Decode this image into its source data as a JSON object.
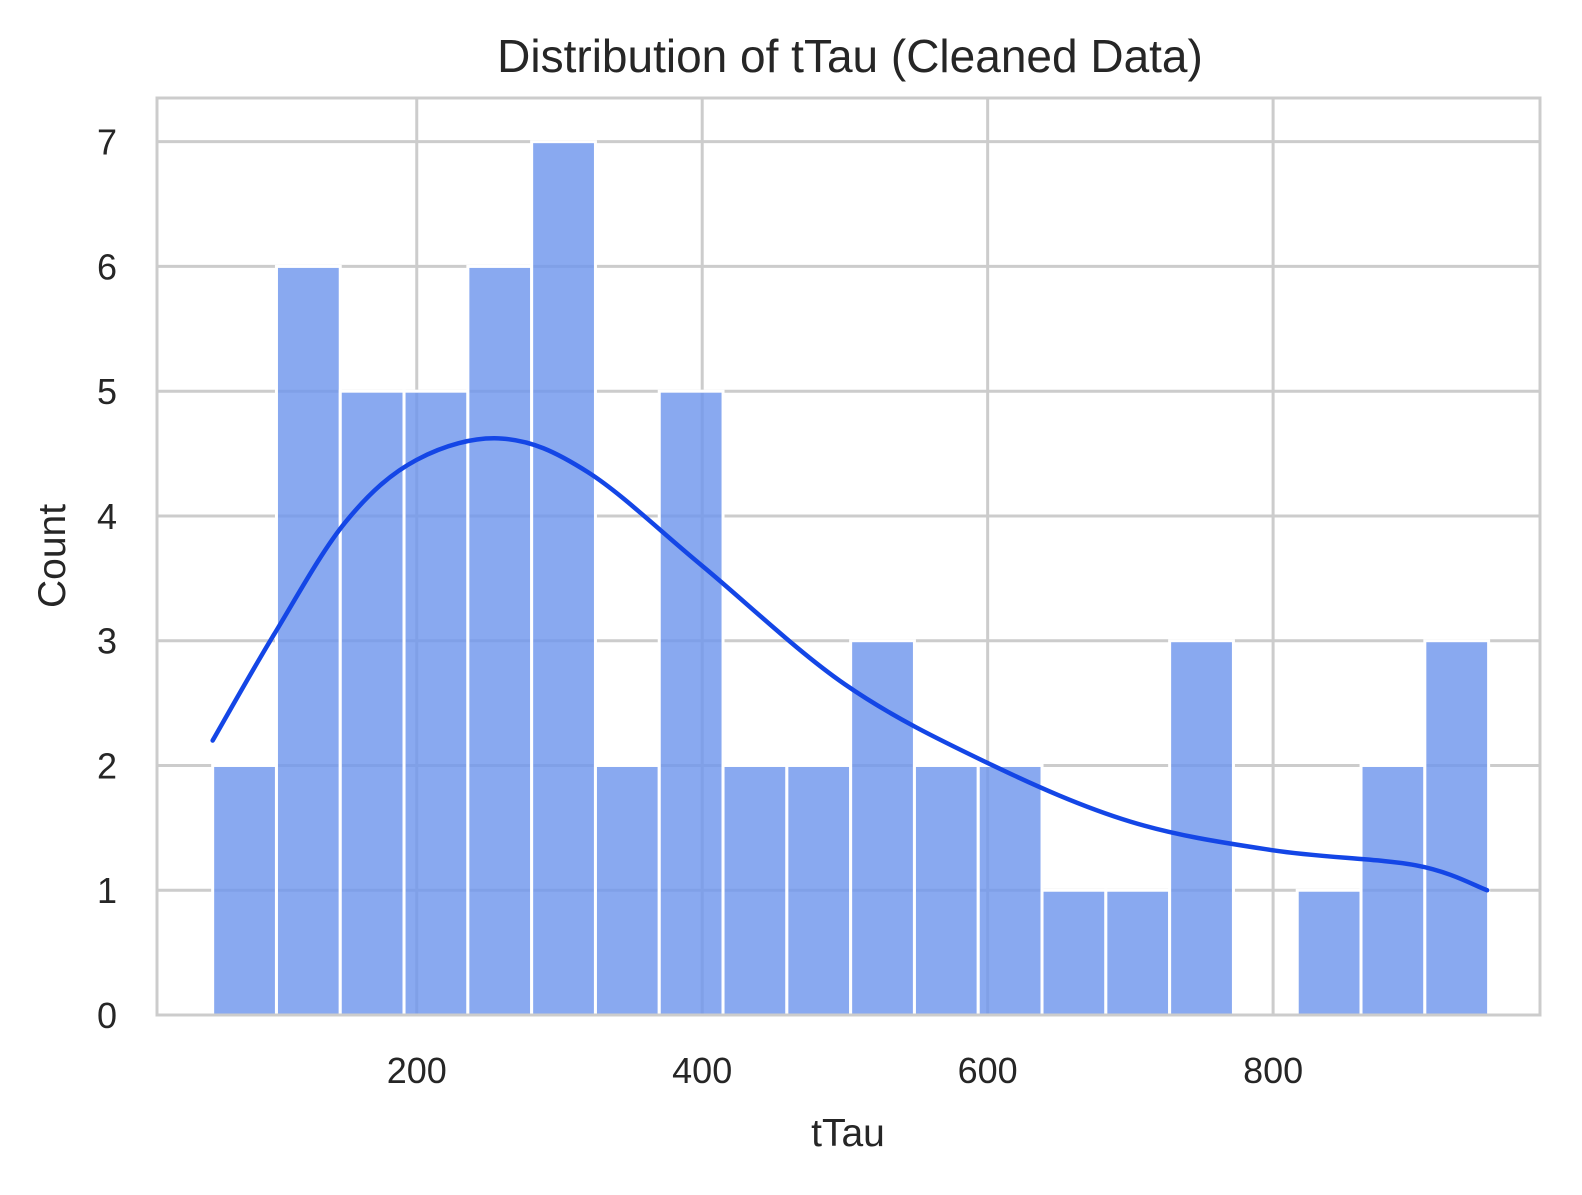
{
  "chart_data": {
    "type": "bar",
    "title": "Distribution of tTau (Cleaned Data)",
    "xlabel": "tTau",
    "ylabel": "Count",
    "xlim": [
      18,
      987
    ],
    "ylim": [
      0,
      7.35
    ],
    "xticks": [
      200,
      400,
      600,
      800
    ],
    "yticks": [
      0,
      1,
      2,
      3,
      4,
      5,
      6,
      7
    ],
    "grid": true,
    "bin_start": 57,
    "bin_width": 44.7,
    "counts": [
      2,
      6,
      5,
      5,
      6,
      7,
      2,
      5,
      2,
      2,
      3,
      2,
      2,
      1,
      1,
      3,
      0,
      1,
      2,
      3
    ],
    "kde": {
      "x": [
        57,
        100,
        150,
        200,
        260,
        320,
        400,
        500,
        600,
        700,
        800,
        900,
        950
      ],
      "y": [
        2.2,
        3.05,
        3.95,
        4.45,
        4.62,
        4.35,
        3.6,
        2.65,
        2.02,
        1.55,
        1.32,
        1.2,
        1.0
      ]
    },
    "bar_color": "#6f96ed",
    "kde_color": "#1446e6",
    "grid_color": "#cccccc"
  }
}
